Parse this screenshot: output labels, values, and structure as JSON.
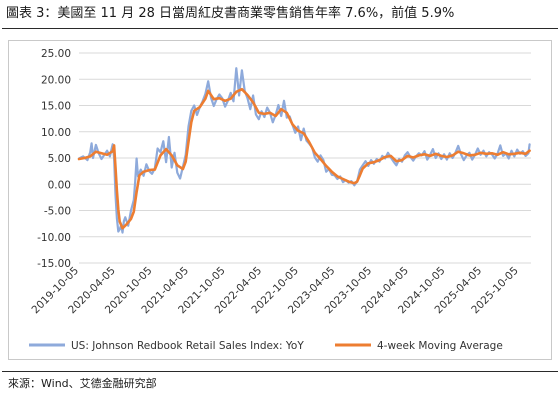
{
  "title": "圖表 3：美國至 11 月 28 日當周紅皮書商業零售銷售年率 7.6%，前值 5.9%",
  "source": "來源：Wind、艾德金融研究部",
  "chart_data": {
    "type": "line",
    "title": "",
    "xlabel": "",
    "ylabel": "",
    "ylim": [
      -15,
      25
    ],
    "yticks": [
      -15,
      -10,
      -5,
      0,
      5,
      10,
      15,
      20,
      25
    ],
    "ytick_labels": [
      "-15.00",
      "-10.00",
      "-5.00",
      "0.00",
      "5.00",
      "10.00",
      "15.00",
      "20.00",
      "25.00"
    ],
    "grid": true,
    "legend_position": "bottom",
    "x_start": "2019-10-05",
    "x_end": "2025-12-05",
    "xticks": [
      "2019-10-05",
      "2020-04-05",
      "2020-10-05",
      "2021-04-05",
      "2021-10-05",
      "2022-04-05",
      "2022-10-05",
      "2023-04-05",
      "2023-10-05",
      "2024-04-05",
      "2024-10-05",
      "2025-04-05",
      "2025-10-05"
    ],
    "series": [
      {
        "name": "US: Johnson Redbook Retail Sales Index: YoY",
        "color": "#8eaadb",
        "points": [
          [
            "2019-10-05",
            4.9
          ],
          [
            "2019-10-26",
            5.3
          ],
          [
            "2019-11-16",
            4.6
          ],
          [
            "2019-11-30",
            6.1
          ],
          [
            "2019-12-07",
            7.8
          ],
          [
            "2019-12-14",
            5.0
          ],
          [
            "2019-12-28",
            7.5
          ],
          [
            "2020-01-11",
            5.9
          ],
          [
            "2020-01-25",
            4.8
          ],
          [
            "2020-02-08",
            5.6
          ],
          [
            "2020-02-22",
            6.4
          ],
          [
            "2020-03-07",
            5.3
          ],
          [
            "2020-03-21",
            7.6
          ],
          [
            "2020-03-28",
            5.0
          ],
          [
            "2020-04-04",
            -2.0
          ],
          [
            "2020-04-11",
            -6.5
          ],
          [
            "2020-04-18",
            -9.0
          ],
          [
            "2020-04-25",
            -8.6
          ],
          [
            "2020-05-02",
            -7.8
          ],
          [
            "2020-05-09",
            -9.2
          ],
          [
            "2020-05-16",
            -7.0
          ],
          [
            "2020-05-23",
            -6.3
          ],
          [
            "2020-06-06",
            -7.9
          ],
          [
            "2020-06-20",
            -5.0
          ],
          [
            "2020-07-04",
            -3.0
          ],
          [
            "2020-07-11",
            0.5
          ],
          [
            "2020-07-18",
            4.9
          ],
          [
            "2020-07-25",
            1.5
          ],
          [
            "2020-08-08",
            2.8
          ],
          [
            "2020-08-22",
            1.6
          ],
          [
            "2020-09-05",
            3.8
          ],
          [
            "2020-09-19",
            2.5
          ],
          [
            "2020-10-03",
            2.0
          ],
          [
            "2020-10-17",
            3.0
          ],
          [
            "2020-10-31",
            6.8
          ],
          [
            "2020-11-14",
            6.1
          ],
          [
            "2020-11-28",
            8.2
          ],
          [
            "2020-12-12",
            4.2
          ],
          [
            "2020-12-26",
            9.0
          ],
          [
            "2021-01-09",
            3.2
          ],
          [
            "2021-01-23",
            6.0
          ],
          [
            "2021-02-06",
            2.2
          ],
          [
            "2021-02-20",
            1.1
          ],
          [
            "2021-03-06",
            3.3
          ],
          [
            "2021-03-20",
            5.6
          ],
          [
            "2021-04-03",
            11.0
          ],
          [
            "2021-04-17",
            14.0
          ],
          [
            "2021-05-01",
            15.0
          ],
          [
            "2021-05-15",
            13.2
          ],
          [
            "2021-05-29",
            14.7
          ],
          [
            "2021-06-12",
            15.8
          ],
          [
            "2021-06-26",
            17.2
          ],
          [
            "2021-07-10",
            19.6
          ],
          [
            "2021-07-24",
            16.5
          ],
          [
            "2021-08-07",
            14.9
          ],
          [
            "2021-08-21",
            16.2
          ],
          [
            "2021-09-04",
            17.1
          ],
          [
            "2021-09-18",
            16.4
          ],
          [
            "2021-10-02",
            14.8
          ],
          [
            "2021-10-16",
            15.9
          ],
          [
            "2021-10-30",
            17.4
          ],
          [
            "2021-11-13",
            15.8
          ],
          [
            "2021-11-27",
            22.1
          ],
          [
            "2021-12-11",
            16.9
          ],
          [
            "2021-12-25",
            21.7
          ],
          [
            "2022-01-08",
            17.8
          ],
          [
            "2022-01-22",
            16.4
          ],
          [
            "2022-02-05",
            14.3
          ],
          [
            "2022-02-19",
            16.9
          ],
          [
            "2022-03-05",
            13.3
          ],
          [
            "2022-03-19",
            12.4
          ],
          [
            "2022-04-02",
            13.9
          ],
          [
            "2022-04-16",
            12.8
          ],
          [
            "2022-04-30",
            14.6
          ],
          [
            "2022-05-14",
            13.6
          ],
          [
            "2022-05-28",
            11.8
          ],
          [
            "2022-06-11",
            13.2
          ],
          [
            "2022-06-25",
            15.1
          ],
          [
            "2022-07-09",
            13.0
          ],
          [
            "2022-07-23",
            15.9
          ],
          [
            "2022-08-06",
            12.7
          ],
          [
            "2022-08-20",
            12.9
          ],
          [
            "2022-09-03",
            11.3
          ],
          [
            "2022-09-17",
            9.8
          ],
          [
            "2022-10-01",
            11.0
          ],
          [
            "2022-10-15",
            8.4
          ],
          [
            "2022-10-29",
            10.6
          ],
          [
            "2022-11-12",
            8.3
          ],
          [
            "2022-11-26",
            7.7
          ],
          [
            "2022-12-10",
            7.0
          ],
          [
            "2022-12-24",
            5.1
          ],
          [
            "2023-01-07",
            4.3
          ],
          [
            "2023-01-21",
            5.5
          ],
          [
            "2023-02-04",
            4.6
          ],
          [
            "2023-02-18",
            2.4
          ],
          [
            "2023-03-04",
            2.9
          ],
          [
            "2023-03-18",
            1.8
          ],
          [
            "2023-04-01",
            1.7
          ],
          [
            "2023-04-15",
            1.0
          ],
          [
            "2023-04-29",
            1.5
          ],
          [
            "2023-05-13",
            0.4
          ],
          [
            "2023-05-27",
            0.8
          ],
          [
            "2023-06-10",
            0.3
          ],
          [
            "2023-06-24",
            0.6
          ],
          [
            "2023-07-08",
            -0.2
          ],
          [
            "2023-07-22",
            0.5
          ],
          [
            "2023-08-05",
            2.8
          ],
          [
            "2023-08-19",
            3.6
          ],
          [
            "2023-09-02",
            4.4
          ],
          [
            "2023-09-16",
            3.5
          ],
          [
            "2023-09-30",
            4.6
          ],
          [
            "2023-10-14",
            3.9
          ],
          [
            "2023-10-28",
            4.8
          ],
          [
            "2023-11-11",
            4.3
          ],
          [
            "2023-11-25",
            5.4
          ],
          [
            "2023-12-09",
            4.9
          ],
          [
            "2023-12-23",
            6.0
          ],
          [
            "2024-01-06",
            5.1
          ],
          [
            "2024-01-20",
            4.3
          ],
          [
            "2024-02-03",
            3.6
          ],
          [
            "2024-02-17",
            4.8
          ],
          [
            "2024-03-02",
            4.3
          ],
          [
            "2024-03-16",
            5.5
          ],
          [
            "2024-03-30",
            6.1
          ],
          [
            "2024-04-13",
            5.2
          ],
          [
            "2024-04-27",
            4.5
          ],
          [
            "2024-05-11",
            5.3
          ],
          [
            "2024-05-25",
            5.9
          ],
          [
            "2024-06-08",
            5.5
          ],
          [
            "2024-06-22",
            6.3
          ],
          [
            "2024-07-06",
            4.7
          ],
          [
            "2024-07-20",
            5.6
          ],
          [
            "2024-08-03",
            6.7
          ],
          [
            "2024-08-17",
            5.0
          ],
          [
            "2024-08-31",
            5.9
          ],
          [
            "2024-09-14",
            4.8
          ],
          [
            "2024-09-28",
            5.7
          ],
          [
            "2024-10-12",
            4.7
          ],
          [
            "2024-10-26",
            5.9
          ],
          [
            "2024-11-09",
            5.0
          ],
          [
            "2024-11-23",
            6.0
          ],
          [
            "2024-12-07",
            7.3
          ],
          [
            "2024-12-21",
            5.7
          ],
          [
            "2025-01-04",
            4.6
          ],
          [
            "2025-01-18",
            5.5
          ],
          [
            "2025-02-01",
            6.0
          ],
          [
            "2025-02-15",
            4.7
          ],
          [
            "2025-03-01",
            5.6
          ],
          [
            "2025-03-15",
            6.8
          ],
          [
            "2025-03-29",
            5.6
          ],
          [
            "2025-04-12",
            6.4
          ],
          [
            "2025-04-26",
            5.3
          ],
          [
            "2025-05-10",
            6.1
          ],
          [
            "2025-05-24",
            5.7
          ],
          [
            "2025-06-07",
            4.9
          ],
          [
            "2025-06-21",
            5.8
          ],
          [
            "2025-07-05",
            7.4
          ],
          [
            "2025-07-19",
            5.4
          ],
          [
            "2025-08-02",
            5.9
          ],
          [
            "2025-08-16",
            4.9
          ],
          [
            "2025-08-30",
            6.4
          ],
          [
            "2025-09-13",
            5.3
          ],
          [
            "2025-09-27",
            6.6
          ],
          [
            "2025-10-11",
            5.8
          ],
          [
            "2025-10-25",
            6.3
          ],
          [
            "2025-11-08",
            5.4
          ],
          [
            "2025-11-22",
            5.9
          ],
          [
            "2025-11-28",
            7.6
          ]
        ]
      },
      {
        "name": "4-week Moving Average",
        "color": "#ed7d31",
        "points": [
          [
            "2019-10-05",
            4.8
          ],
          [
            "2019-11-02",
            5.0
          ],
          [
            "2019-11-30",
            5.3
          ],
          [
            "2019-12-28",
            6.2
          ],
          [
            "2020-01-25",
            5.9
          ],
          [
            "2020-02-22",
            5.6
          ],
          [
            "2020-03-21",
            6.3
          ],
          [
            "2020-03-28",
            7.4
          ],
          [
            "2020-04-04",
            3.2
          ],
          [
            "2020-04-11",
            -1.2
          ],
          [
            "2020-04-18",
            -4.8
          ],
          [
            "2020-04-25",
            -7.1
          ],
          [
            "2020-05-09",
            -8.4
          ],
          [
            "2020-05-30",
            -7.6
          ],
          [
            "2020-06-20",
            -6.6
          ],
          [
            "2020-07-04",
            -5.2
          ],
          [
            "2020-07-18",
            -1.5
          ],
          [
            "2020-08-01",
            1.7
          ],
          [
            "2020-08-22",
            2.4
          ],
          [
            "2020-09-19",
            2.7
          ],
          [
            "2020-10-17",
            2.8
          ],
          [
            "2020-11-14",
            5.5
          ],
          [
            "2020-12-12",
            6.7
          ],
          [
            "2021-01-09",
            5.5
          ],
          [
            "2021-02-06",
            3.6
          ],
          [
            "2021-03-06",
            2.9
          ],
          [
            "2021-03-20",
            4.3
          ],
          [
            "2021-04-03",
            8.1
          ],
          [
            "2021-04-17",
            11.8
          ],
          [
            "2021-05-01",
            14.0
          ],
          [
            "2021-05-29",
            14.7
          ],
          [
            "2021-06-26",
            16.3
          ],
          [
            "2021-07-10",
            17.8
          ],
          [
            "2021-08-07",
            16.2
          ],
          [
            "2021-09-04",
            16.4
          ],
          [
            "2021-10-02",
            15.9
          ],
          [
            "2021-10-30",
            16.3
          ],
          [
            "2021-11-27",
            17.6
          ],
          [
            "2021-12-25",
            18.1
          ],
          [
            "2022-01-22",
            17.0
          ],
          [
            "2022-02-19",
            15.6
          ],
          [
            "2022-03-19",
            13.6
          ],
          [
            "2022-04-16",
            13.4
          ],
          [
            "2022-05-14",
            13.6
          ],
          [
            "2022-06-11",
            13.0
          ],
          [
            "2022-07-09",
            14.3
          ],
          [
            "2022-08-06",
            13.6
          ],
          [
            "2022-09-03",
            11.4
          ],
          [
            "2022-10-01",
            10.2
          ],
          [
            "2022-10-29",
            9.7
          ],
          [
            "2022-11-26",
            8.0
          ],
          [
            "2022-12-24",
            6.0
          ],
          [
            "2023-01-21",
            4.8
          ],
          [
            "2023-02-18",
            3.5
          ],
          [
            "2023-03-18",
            2.4
          ],
          [
            "2023-04-15",
            1.5
          ],
          [
            "2023-05-13",
            1.0
          ],
          [
            "2023-06-10",
            0.5
          ],
          [
            "2023-07-08",
            0.2
          ],
          [
            "2023-07-22",
            0.5
          ],
          [
            "2023-08-05",
            1.7
          ],
          [
            "2023-08-19",
            3.0
          ],
          [
            "2023-09-16",
            4.0
          ],
          [
            "2023-10-14",
            4.2
          ],
          [
            "2023-11-11",
            4.6
          ],
          [
            "2023-12-09",
            5.2
          ],
          [
            "2024-01-06",
            5.4
          ],
          [
            "2024-02-03",
            4.4
          ],
          [
            "2024-03-02",
            4.6
          ],
          [
            "2024-03-30",
            5.4
          ],
          [
            "2024-04-27",
            5.1
          ],
          [
            "2024-05-25",
            5.5
          ],
          [
            "2024-06-22",
            5.7
          ],
          [
            "2024-07-20",
            5.4
          ],
          [
            "2024-08-17",
            5.8
          ],
          [
            "2024-09-14",
            5.4
          ],
          [
            "2024-10-12",
            5.2
          ],
          [
            "2024-11-09",
            5.5
          ],
          [
            "2024-12-07",
            6.2
          ],
          [
            "2025-01-04",
            5.9
          ],
          [
            "2025-02-01",
            5.5
          ],
          [
            "2025-03-01",
            5.6
          ],
          [
            "2025-03-29",
            6.0
          ],
          [
            "2025-04-26",
            5.8
          ],
          [
            "2025-05-24",
            5.9
          ],
          [
            "2025-06-21",
            5.6
          ],
          [
            "2025-07-19",
            6.1
          ],
          [
            "2025-08-16",
            5.7
          ],
          [
            "2025-09-13",
            5.8
          ],
          [
            "2025-10-11",
            6.0
          ],
          [
            "2025-11-08",
            5.8
          ],
          [
            "2025-11-28",
            6.4
          ]
        ]
      }
    ]
  }
}
